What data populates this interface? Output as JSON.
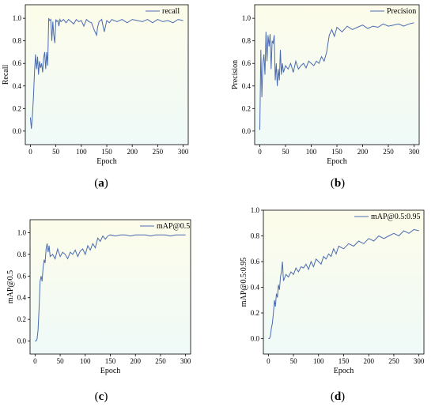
{
  "chart_data": [
    {
      "type": "line",
      "panel": "(a)",
      "panel_letter": "a",
      "xlabel": "Epoch",
      "ylabel": "Recall",
      "xlim": [
        -10,
        310
      ],
      "ylim": [
        -0.12,
        1.12
      ],
      "xticks": [
        0,
        50,
        100,
        150,
        200,
        250,
        300
      ],
      "yticks": [
        0.0,
        0.2,
        0.4,
        0.6,
        0.8,
        1.0
      ],
      "grid": false,
      "legend_position": "top-right",
      "series": [
        {
          "name": "recall",
          "x": [
            0,
            2,
            4,
            6,
            8,
            10,
            12,
            14,
            16,
            18,
            20,
            22,
            24,
            26,
            28,
            30,
            32,
            34,
            36,
            38,
            40,
            42,
            44,
            46,
            48,
            50,
            52,
            54,
            56,
            58,
            60,
            65,
            70,
            75,
            80,
            85,
            90,
            95,
            100,
            105,
            110,
            115,
            120,
            125,
            130,
            132,
            135,
            140,
            145,
            150,
            155,
            160,
            170,
            180,
            190,
            200,
            210,
            220,
            230,
            240,
            250,
            260,
            270,
            280,
            290,
            300
          ],
          "y": [
            0.12,
            0.02,
            0.14,
            0.3,
            0.52,
            0.68,
            0.55,
            0.66,
            0.5,
            0.62,
            0.56,
            0.6,
            0.52,
            0.65,
            0.7,
            0.55,
            0.7,
            0.58,
            1.0,
            0.98,
            0.99,
            0.8,
            0.97,
            0.85,
            0.78,
            0.99,
            0.97,
            0.98,
            0.93,
            0.99,
            0.97,
            0.99,
            0.96,
            0.99,
            0.97,
            0.95,
            0.99,
            0.97,
            0.98,
            0.93,
            0.99,
            0.97,
            0.96,
            0.9,
            0.85,
            0.92,
            0.97,
            0.99,
            0.88,
            0.98,
            0.96,
            0.99,
            0.97,
            0.99,
            0.96,
            0.99,
            0.98,
            0.97,
            0.99,
            0.96,
            0.99,
            0.97,
            0.98,
            0.96,
            0.99,
            0.98
          ]
        }
      ]
    },
    {
      "type": "line",
      "panel": "(b)",
      "panel_letter": "b",
      "xlabel": "Epoch",
      "ylabel": "Precision",
      "xlim": [
        -10,
        310
      ],
      "ylim": [
        -0.12,
        1.12
      ],
      "xticks": [
        0,
        50,
        100,
        150,
        200,
        250,
        300
      ],
      "yticks": [
        0.0,
        0.2,
        0.4,
        0.6,
        0.8,
        1.0
      ],
      "grid": false,
      "legend_position": "top-right",
      "series": [
        {
          "name": "Precision",
          "x": [
            0,
            2,
            4,
            6,
            8,
            10,
            12,
            14,
            16,
            18,
            20,
            22,
            24,
            26,
            28,
            30,
            32,
            34,
            36,
            38,
            40,
            42,
            44,
            46,
            48,
            50,
            55,
            60,
            65,
            70,
            75,
            80,
            85,
            90,
            95,
            100,
            105,
            110,
            115,
            120,
            125,
            130,
            135,
            140,
            145,
            150,
            160,
            170,
            180,
            190,
            200,
            210,
            220,
            230,
            240,
            250,
            260,
            270,
            280,
            290,
            300
          ],
          "y": [
            0.01,
            0.72,
            0.3,
            0.6,
            0.68,
            0.5,
            0.88,
            0.62,
            0.85,
            0.75,
            0.86,
            0.55,
            0.8,
            0.78,
            0.85,
            0.45,
            0.6,
            0.4,
            0.55,
            0.45,
            0.72,
            0.5,
            0.6,
            0.52,
            0.55,
            0.58,
            0.55,
            0.6,
            0.52,
            0.62,
            0.55,
            0.58,
            0.6,
            0.56,
            0.62,
            0.6,
            0.58,
            0.62,
            0.6,
            0.66,
            0.62,
            0.7,
            0.85,
            0.9,
            0.84,
            0.92,
            0.88,
            0.93,
            0.9,
            0.92,
            0.94,
            0.91,
            0.93,
            0.92,
            0.95,
            0.93,
            0.94,
            0.95,
            0.93,
            0.95,
            0.96
          ]
        }
      ]
    },
    {
      "type": "line",
      "panel": "(c)",
      "panel_letter": "c",
      "xlabel": "Epoch",
      "ylabel": "mAP@0.5",
      "xlim": [
        -10,
        310
      ],
      "ylim": [
        -0.12,
        1.12
      ],
      "xticks": [
        0,
        50,
        100,
        150,
        200,
        250,
        300
      ],
      "yticks": [
        0.0,
        0.2,
        0.4,
        0.6,
        0.8,
        1.0
      ],
      "grid": false,
      "legend_position": "top-right",
      "series": [
        {
          "name": "mAP@0.5",
          "x": [
            0,
            2,
            4,
            6,
            8,
            10,
            12,
            14,
            16,
            18,
            20,
            22,
            24,
            26,
            28,
            30,
            35,
            40,
            45,
            50,
            55,
            60,
            65,
            70,
            75,
            80,
            85,
            90,
            95,
            100,
            105,
            110,
            115,
            120,
            125,
            130,
            135,
            140,
            145,
            150,
            160,
            170,
            180,
            190,
            200,
            210,
            220,
            230,
            240,
            250,
            260,
            270,
            280,
            290,
            300
          ],
          "y": [
            0.0,
            0.0,
            0.02,
            0.1,
            0.3,
            0.55,
            0.6,
            0.55,
            0.68,
            0.75,
            0.72,
            0.85,
            0.9,
            0.82,
            0.88,
            0.78,
            0.8,
            0.76,
            0.85,
            0.78,
            0.82,
            0.8,
            0.76,
            0.82,
            0.8,
            0.84,
            0.78,
            0.83,
            0.85,
            0.8,
            0.88,
            0.84,
            0.9,
            0.86,
            0.95,
            0.92,
            0.97,
            0.94,
            0.97,
            0.98,
            0.97,
            0.98,
            0.98,
            0.97,
            0.98,
            0.98,
            0.98,
            0.97,
            0.98,
            0.98,
            0.98,
            0.97,
            0.98,
            0.98,
            0.98
          ]
        }
      ]
    },
    {
      "type": "line",
      "panel": "(d)",
      "panel_letter": "d",
      "xlabel": "Epoch",
      "ylabel": "mAP@0.5:0.95",
      "xlim": [
        -10,
        310
      ],
      "ylim": [
        -0.12,
        1.0
      ],
      "xticks": [
        0,
        50,
        100,
        150,
        200,
        250,
        300
      ],
      "yticks": [
        0.0,
        0.2,
        0.4,
        0.6,
        0.8,
        1.0
      ],
      "grid": false,
      "legend_position": "top-right",
      "series": [
        {
          "name": "mAP@0.5:0.95",
          "x": [
            0,
            2,
            4,
            6,
            8,
            10,
            12,
            14,
            16,
            18,
            20,
            22,
            24,
            26,
            28,
            30,
            35,
            40,
            45,
            50,
            55,
            60,
            65,
            70,
            75,
            80,
            85,
            90,
            95,
            100,
            105,
            110,
            115,
            120,
            125,
            130,
            135,
            140,
            150,
            160,
            170,
            180,
            190,
            200,
            210,
            220,
            230,
            240,
            250,
            260,
            270,
            280,
            290,
            300
          ],
          "y": [
            0.0,
            0.0,
            0.02,
            0.08,
            0.12,
            0.2,
            0.3,
            0.25,
            0.35,
            0.32,
            0.42,
            0.38,
            0.48,
            0.52,
            0.6,
            0.45,
            0.5,
            0.48,
            0.52,
            0.5,
            0.55,
            0.52,
            0.56,
            0.55,
            0.58,
            0.54,
            0.6,
            0.56,
            0.62,
            0.6,
            0.58,
            0.64,
            0.62,
            0.66,
            0.64,
            0.7,
            0.66,
            0.72,
            0.7,
            0.74,
            0.72,
            0.76,
            0.74,
            0.78,
            0.76,
            0.8,
            0.78,
            0.8,
            0.82,
            0.8,
            0.84,
            0.82,
            0.85,
            0.84
          ]
        }
      ]
    }
  ],
  "colors": {
    "line": "#4a6bb0",
    "bg_top": "#fdfcea",
    "bg_bottom": "#effaf8",
    "axis": "#000000"
  }
}
